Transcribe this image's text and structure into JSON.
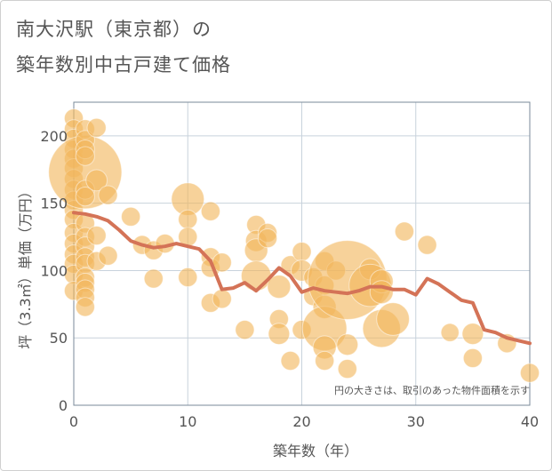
{
  "title_line1": "南大沢駅（東京都）の",
  "title_line2": "築年数別中古戸建て価格",
  "note": "円の大きさは、取引のあった物件面積を示す",
  "colors": {
    "bubble": "#f2b75c",
    "line": "#d47357",
    "grid": "#c8d2dc",
    "axis": "#7a8a99",
    "text": "#555555"
  },
  "chart_data": {
    "type": "scatter",
    "xlabel": "築年数（年）",
    "ylabel": "坪（3.3㎡）単価（万円）",
    "xlim": [
      0,
      40
    ],
    "ylim": [
      0,
      225
    ],
    "xticks": [
      0,
      10,
      20,
      30,
      40
    ],
    "yticks": [
      0,
      50,
      100,
      150,
      200
    ],
    "grid": true,
    "points": [
      {
        "x": 0,
        "y": 213,
        "s": 2
      },
      {
        "x": 0,
        "y": 205,
        "s": 2
      },
      {
        "x": 0,
        "y": 198,
        "s": 2
      },
      {
        "x": 0,
        "y": 190,
        "s": 2
      },
      {
        "x": 0,
        "y": 183,
        "s": 2
      },
      {
        "x": 0,
        "y": 176,
        "s": 2
      },
      {
        "x": 0,
        "y": 168,
        "s": 2
      },
      {
        "x": 0,
        "y": 160,
        "s": 2
      },
      {
        "x": 0,
        "y": 152,
        "s": 2
      },
      {
        "x": 0,
        "y": 145,
        "s": 2
      },
      {
        "x": 0,
        "y": 138,
        "s": 2
      },
      {
        "x": 0,
        "y": 128,
        "s": 2
      },
      {
        "x": 0,
        "y": 120,
        "s": 2
      },
      {
        "x": 0,
        "y": 112,
        "s": 2
      },
      {
        "x": 0,
        "y": 105,
        "s": 2
      },
      {
        "x": 0,
        "y": 97,
        "s": 2
      },
      {
        "x": 0,
        "y": 85,
        "s": 2
      },
      {
        "x": 1,
        "y": 173,
        "s": 30
      },
      {
        "x": 1,
        "y": 205,
        "s": 2
      },
      {
        "x": 1,
        "y": 197,
        "s": 2
      },
      {
        "x": 1,
        "y": 190,
        "s": 2
      },
      {
        "x": 1,
        "y": 185,
        "s": 2
      },
      {
        "x": 1,
        "y": 160,
        "s": 2
      },
      {
        "x": 1,
        "y": 155,
        "s": 2
      },
      {
        "x": 1,
        "y": 135,
        "s": 2
      },
      {
        "x": 1,
        "y": 125,
        "s": 2
      },
      {
        "x": 1,
        "y": 118,
        "s": 2
      },
      {
        "x": 1,
        "y": 110,
        "s": 2
      },
      {
        "x": 1,
        "y": 105,
        "s": 2
      },
      {
        "x": 1,
        "y": 95,
        "s": 2
      },
      {
        "x": 1,
        "y": 91,
        "s": 2
      },
      {
        "x": 1,
        "y": 86,
        "s": 2
      },
      {
        "x": 1,
        "y": 80,
        "s": 2
      },
      {
        "x": 1,
        "y": 73,
        "s": 2
      },
      {
        "x": 2,
        "y": 206,
        "s": 2
      },
      {
        "x": 2,
        "y": 167,
        "s": 2.5
      },
      {
        "x": 2,
        "y": 126,
        "s": 2
      },
      {
        "x": 2,
        "y": 107,
        "s": 2
      },
      {
        "x": 3,
        "y": 156,
        "s": 2
      },
      {
        "x": 3,
        "y": 111,
        "s": 2
      },
      {
        "x": 5,
        "y": 140,
        "s": 2
      },
      {
        "x": 6,
        "y": 119,
        "s": 2
      },
      {
        "x": 7,
        "y": 115,
        "s": 2
      },
      {
        "x": 7,
        "y": 94,
        "s": 2
      },
      {
        "x": 8,
        "y": 120,
        "s": 2
      },
      {
        "x": 10,
        "y": 153,
        "s": 6
      },
      {
        "x": 10,
        "y": 138,
        "s": 2
      },
      {
        "x": 10,
        "y": 125,
        "s": 2
      },
      {
        "x": 10,
        "y": 95,
        "s": 2
      },
      {
        "x": 12,
        "y": 144,
        "s": 2
      },
      {
        "x": 12,
        "y": 110,
        "s": 2
      },
      {
        "x": 12,
        "y": 102,
        "s": 2
      },
      {
        "x": 12,
        "y": 76,
        "s": 2
      },
      {
        "x": 13,
        "y": 106,
        "s": 2
      },
      {
        "x": 13,
        "y": 79,
        "s": 2
      },
      {
        "x": 15,
        "y": 56,
        "s": 2
      },
      {
        "x": 16,
        "y": 134,
        "s": 2
      },
      {
        "x": 16,
        "y": 122,
        "s": 2.5
      },
      {
        "x": 16,
        "y": 115,
        "s": 3
      },
      {
        "x": 16,
        "y": 96,
        "s": 5
      },
      {
        "x": 17,
        "y": 128,
        "s": 2
      },
      {
        "x": 17,
        "y": 124,
        "s": 2
      },
      {
        "x": 18,
        "y": 88,
        "s": 3
      },
      {
        "x": 18,
        "y": 64,
        "s": 2
      },
      {
        "x": 18,
        "y": 53,
        "s": 2.5
      },
      {
        "x": 19,
        "y": 104,
        "s": 2
      },
      {
        "x": 19,
        "y": 33,
        "s": 2
      },
      {
        "x": 20,
        "y": 114,
        "s": 2
      },
      {
        "x": 20,
        "y": 100,
        "s": 2.5
      },
      {
        "x": 20,
        "y": 56,
        "s": 2
      },
      {
        "x": 21,
        "y": 95,
        "s": 2
      },
      {
        "x": 21,
        "y": 81,
        "s": 2
      },
      {
        "x": 22,
        "y": 107,
        "s": 2
      },
      {
        "x": 22,
        "y": 89,
        "s": 2
      },
      {
        "x": 22,
        "y": 73,
        "s": 3
      },
      {
        "x": 22,
        "y": 57,
        "s": 11
      },
      {
        "x": 22,
        "y": 43,
        "s": 3
      },
      {
        "x": 22,
        "y": 33,
        "s": 2
      },
      {
        "x": 23,
        "y": 100,
        "s": 2
      },
      {
        "x": 24,
        "y": 93,
        "s": 35
      },
      {
        "x": 24,
        "y": 45,
        "s": 2.5
      },
      {
        "x": 24,
        "y": 27,
        "s": 2
      },
      {
        "x": 26,
        "y": 101,
        "s": 2.5
      },
      {
        "x": 26,
        "y": 89,
        "s": 10
      },
      {
        "x": 27,
        "y": 92,
        "s": 3
      },
      {
        "x": 27,
        "y": 84,
        "s": 3
      },
      {
        "x": 27,
        "y": 57,
        "s": 8
      },
      {
        "x": 28,
        "y": 64,
        "s": 6
      },
      {
        "x": 29,
        "y": 129,
        "s": 2
      },
      {
        "x": 31,
        "y": 119,
        "s": 2
      },
      {
        "x": 33,
        "y": 54,
        "s": 1.8
      },
      {
        "x": 35,
        "y": 53,
        "s": 2.5
      },
      {
        "x": 35,
        "y": 35,
        "s": 2
      },
      {
        "x": 38,
        "y": 46,
        "s": 2
      },
      {
        "x": 40,
        "y": 24,
        "s": 2
      }
    ],
    "trend": {
      "name": "",
      "x": [
        0,
        1,
        2,
        3,
        4,
        5,
        6,
        7,
        8,
        9,
        10,
        11,
        12,
        13,
        14,
        15,
        16,
        17,
        18,
        19,
        20,
        21,
        22,
        23,
        24,
        25,
        26,
        27,
        28,
        29,
        30,
        31,
        32,
        33,
        34,
        35,
        36,
        37,
        38,
        39,
        40
      ],
      "y": [
        143,
        142,
        140,
        137,
        130,
        122,
        119,
        117,
        118,
        120,
        118,
        116,
        107,
        86,
        87,
        91,
        85,
        93,
        102,
        96,
        84,
        87,
        85,
        84,
        83,
        85,
        88,
        88,
        86,
        86,
        82,
        94,
        90,
        84,
        78,
        76,
        56,
        54,
        50,
        48,
        46
      ]
    }
  }
}
